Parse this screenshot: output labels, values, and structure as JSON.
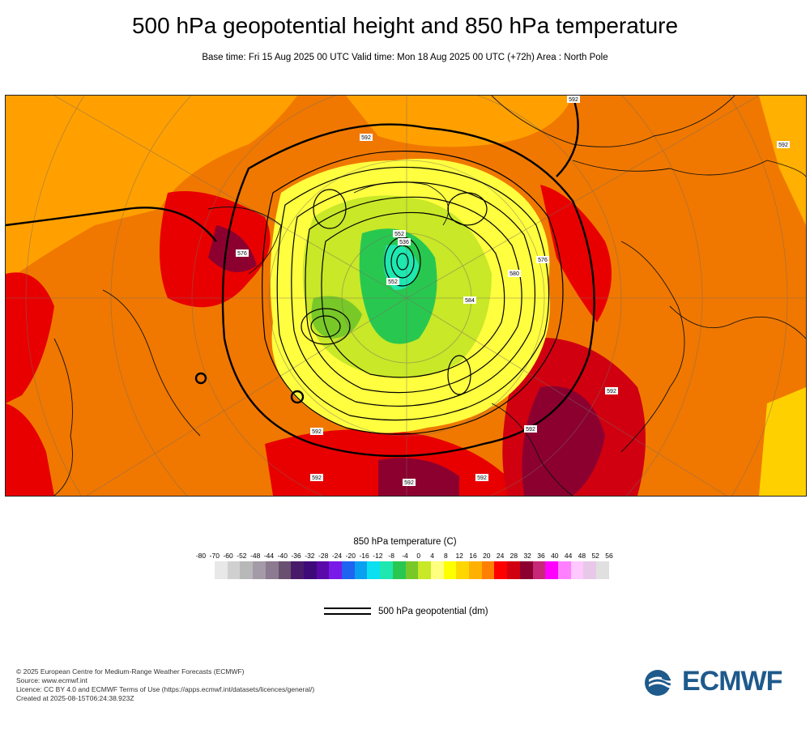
{
  "header": {
    "title": "500 hPa geopotential height and 850 hPa temperature",
    "subtitle": "Base time: Fri 15 Aug 2025 00 UTC Valid time: Mon 18 Aug 2025 00 UTC (+72h) Area : North Pole"
  },
  "map": {
    "area": "North Pole",
    "contour_labels": [
      "592",
      "592",
      "592",
      "592",
      "584",
      "580",
      "576",
      "576",
      "552",
      "552",
      "536",
      "592",
      "592",
      "592",
      "592",
      "592"
    ]
  },
  "legend": {
    "title": "850 hPa temperature (C)",
    "ticks": [
      "-80",
      "-70",
      "-60",
      "-52",
      "-48",
      "-44",
      "-40",
      "-36",
      "-32",
      "-28",
      "-24",
      "-20",
      "-16",
      "-12",
      "-8",
      "-4",
      "0",
      "4",
      "8",
      "12",
      "16",
      "20",
      "24",
      "28",
      "32",
      "36",
      "40",
      "44",
      "48",
      "52",
      "56"
    ],
    "colors": [
      "#e8e8e8",
      "#d0d0d0",
      "#b8b8b8",
      "#a59aa8",
      "#8c7a90",
      "#6a5070",
      "#4a1a6a",
      "#3e0a7a",
      "#5a0aa8",
      "#7a1ae8",
      "#1e64f0",
      "#0aa0f0",
      "#0ae0f0",
      "#1ee8b0",
      "#28c850",
      "#78c828",
      "#c8e828",
      "#ffff80",
      "#ffff00",
      "#ffd700",
      "#ffb000",
      "#ff8000",
      "#ff0000",
      "#d00010",
      "#8c0030",
      "#c82878",
      "#ff00ff",
      "#ff80ff",
      "#ffc8ff",
      "#e8c8e8",
      "#e0e0e0"
    ],
    "contour_label": "500 hPa geopotential (dm)"
  },
  "credits": {
    "line1": "© 2025 European Centre for Medium-Range Weather Forecasts (ECMWF)",
    "line2": "Source: www.ecmwf.int",
    "line3": "Licence: CC BY 4.0 and ECMWF Terms of Use (https://apps.ecmwf.int/datasets/licences/general/)",
    "line4": "Created at 2025-08-15T06:24:38.923Z"
  },
  "logo": {
    "text": "ECMWF",
    "color": "#1e5a8c"
  }
}
